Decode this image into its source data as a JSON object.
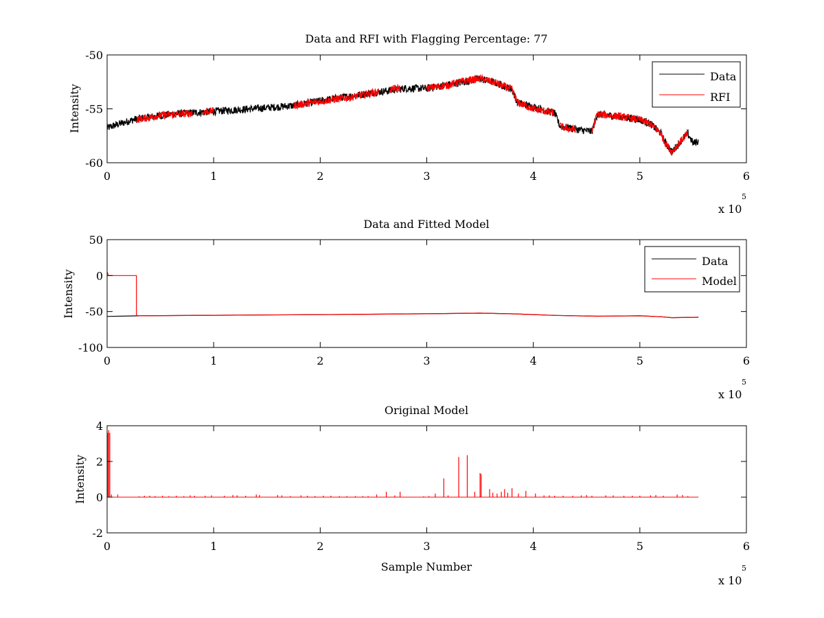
{
  "chart_data": [
    {
      "type": "line",
      "title": "Data and RFI with Flagging Percentage: 77",
      "xlabel": "",
      "ylabel": "Intensity",
      "xlim": [
        0,
        600000
      ],
      "ylim": [
        -60,
        -50
      ],
      "xticks": [
        0,
        100000,
        200000,
        300000,
        400000,
        500000,
        600000
      ],
      "xtick_labels": [
        "0",
        "1",
        "2",
        "3",
        "4",
        "5",
        "6"
      ],
      "yticks": [
        -60,
        -55,
        -50
      ],
      "ytick_labels": [
        "-60",
        "-55",
        "-50"
      ],
      "x_multiplier": {
        "base": "x 10",
        "exponent": "5"
      },
      "legend": {
        "placement": "top-right",
        "entries": [
          {
            "label": "Data",
            "color": "#000000"
          },
          {
            "label": "RFI",
            "color": "#ff0000"
          }
        ]
      },
      "series": [
        {
          "name": "Data",
          "color": "#000000",
          "x": [
            0,
            5000,
            15000,
            25000,
            30000,
            60000,
            90000,
            120000,
            150000,
            175000,
            210000,
            250000,
            280000,
            300000,
            330000,
            350000,
            365000,
            380000,
            385000,
            420000,
            425000,
            440000,
            455000,
            460000,
            480000,
            500000,
            510000,
            520000,
            523000,
            530000,
            540000,
            545000,
            550000,
            555000
          ],
          "y": [
            -56.8,
            -56.6,
            -56.3,
            -56.0,
            -55.9,
            -55.5,
            -55.3,
            -55.1,
            -54.9,
            -54.7,
            -54.1,
            -53.5,
            -53.1,
            -53.1,
            -52.6,
            -52.2,
            -52.6,
            -53.2,
            -54.4,
            -55.4,
            -56.6,
            -56.9,
            -57.1,
            -55.5,
            -55.7,
            -56.0,
            -56.4,
            -57.3,
            -58.0,
            -59.0,
            -57.8,
            -57.3,
            -58.2,
            -58.0
          ],
          "band": 0.35
        },
        {
          "name": "RFI",
          "color": "#ff0000",
          "segments": [
            {
              "x": [
                28000,
                50000,
                80000
              ],
              "y": [
                -56.0,
                -55.6,
                -55.4
              ]
            },
            {
              "x": [
                90000,
                100000
              ],
              "y": [
                -55.3,
                -55.2
              ]
            },
            {
              "x": [
                175000,
                200000,
                230000,
                255000
              ],
              "y": [
                -54.7,
                -54.3,
                -53.9,
                -53.4
              ]
            },
            {
              "x": [
                265000,
                275000
              ],
              "y": [
                -53.2,
                -53.1
              ]
            },
            {
              "x": [
                300000,
                320000,
                335000,
                350000,
                365000,
                380000,
                385000,
                400000,
                420000
              ],
              "y": [
                -53.1,
                -52.8,
                -52.4,
                -52.2,
                -52.6,
                -53.2,
                -54.4,
                -55.0,
                -55.4
              ]
            },
            {
              "x": [
                425000,
                430000,
                440000
              ],
              "y": [
                -56.6,
                -56.8,
                -56.9
              ]
            },
            {
              "x": [
                455000,
                460000,
                470000,
                480000,
                500000,
                510000,
                520000,
                523000,
                530000,
                540000,
                545000
              ],
              "y": [
                -57.1,
                -55.5,
                -55.6,
                -55.7,
                -56.0,
                -56.4,
                -57.3,
                -58.0,
                -59.0,
                -57.8,
                -57.3
              ]
            }
          ],
          "band": 0.35
        }
      ]
    },
    {
      "type": "line",
      "title": "Data and Fitted Model",
      "xlabel": "",
      "ylabel": "Intensity",
      "xlim": [
        0,
        600000
      ],
      "ylim": [
        -100,
        50
      ],
      "xticks": [
        0,
        100000,
        200000,
        300000,
        400000,
        500000,
        600000
      ],
      "xtick_labels": [
        "0",
        "1",
        "2",
        "3",
        "4",
        "5",
        "6"
      ],
      "yticks": [
        -100,
        -50,
        0,
        50
      ],
      "ytick_labels": [
        "-100",
        "-50",
        "0",
        "50"
      ],
      "x_multiplier": {
        "base": "x 10",
        "exponent": "5"
      },
      "legend": {
        "placement": "top-right",
        "entries": [
          {
            "label": "Data",
            "color": "#000000"
          },
          {
            "label": "Model",
            "color": "#ff0000"
          }
        ]
      },
      "series": [
        {
          "name": "Data",
          "color": "#000000",
          "x": [
            0,
            30000,
            100000,
            200000,
            300000,
            350000,
            380000,
            420000,
            460000,
            500000,
            520000,
            530000,
            555000
          ],
          "y": [
            -56.8,
            -56.0,
            -55.2,
            -54.3,
            -53.1,
            -52.2,
            -53.2,
            -55.4,
            -56.5,
            -56.0,
            -57.3,
            -58.5,
            -58.0
          ]
        },
        {
          "name": "Model",
          "color": "#ff0000",
          "x": [
            0,
            1200,
            2500,
            27500,
            27500,
            30000,
            100000,
            200000,
            300000,
            350000,
            380000,
            420000,
            460000,
            500000,
            520000,
            530000,
            555000
          ],
          "y": [
            5,
            0,
            0,
            0,
            -55.5,
            -56.0,
            -55.2,
            -54.3,
            -53.1,
            -52.2,
            -53.2,
            -55.4,
            -56.5,
            -56.0,
            -57.3,
            -58.5,
            -58.0
          ]
        }
      ]
    },
    {
      "type": "line",
      "title": "Original Model",
      "xlabel": "Sample Number",
      "ylabel": "Intensity",
      "xlim": [
        0,
        600000
      ],
      "ylim": [
        -2,
        4
      ],
      "xticks": [
        0,
        100000,
        200000,
        300000,
        400000,
        500000,
        600000
      ],
      "xtick_labels": [
        "0",
        "1",
        "2",
        "3",
        "4",
        "5",
        "6"
      ],
      "yticks": [
        -2,
        0,
        2,
        4
      ],
      "ytick_labels": [
        "-2",
        "0",
        "2",
        "4"
      ],
      "x_multiplier": {
        "base": "x 10",
        "exponent": "5"
      },
      "series": [
        {
          "name": "",
          "color": "#ff0000",
          "baseline": 0,
          "x_end": 555000,
          "spikes": [
            {
              "x": 500,
              "y": 3.6
            },
            {
              "x": 1500,
              "y": 3.75
            },
            {
              "x": 2500,
              "y": 3.6
            },
            {
              "x": 4000,
              "y": 0.15
            },
            {
              "x": 10000,
              "y": 0.15
            },
            {
              "x": 30000,
              "y": 0.05
            },
            {
              "x": 35000,
              "y": 0.08
            },
            {
              "x": 40000,
              "y": 0.08
            },
            {
              "x": 45000,
              "y": 0.06
            },
            {
              "x": 52000,
              "y": 0.08
            },
            {
              "x": 58000,
              "y": 0.06
            },
            {
              "x": 65000,
              "y": 0.08
            },
            {
              "x": 72000,
              "y": 0.06
            },
            {
              "x": 78000,
              "y": 0.1
            },
            {
              "x": 82000,
              "y": 0.08
            },
            {
              "x": 92000,
              "y": 0.08
            },
            {
              "x": 98000,
              "y": 0.1
            },
            {
              "x": 110000,
              "y": 0.08
            },
            {
              "x": 118000,
              "y": 0.12
            },
            {
              "x": 122000,
              "y": 0.1
            },
            {
              "x": 130000,
              "y": 0.08
            },
            {
              "x": 140000,
              "y": 0.15
            },
            {
              "x": 143000,
              "y": 0.12
            },
            {
              "x": 160000,
              "y": 0.12
            },
            {
              "x": 164000,
              "y": 0.1
            },
            {
              "x": 172000,
              "y": 0.06
            },
            {
              "x": 182000,
              "y": 0.1
            },
            {
              "x": 188000,
              "y": 0.08
            },
            {
              "x": 195000,
              "y": 0.06
            },
            {
              "x": 203000,
              "y": 0.08
            },
            {
              "x": 210000,
              "y": 0.08
            },
            {
              "x": 218000,
              "y": 0.06
            },
            {
              "x": 225000,
              "y": 0.06
            },
            {
              "x": 233000,
              "y": 0.06
            },
            {
              "x": 240000,
              "y": 0.06
            },
            {
              "x": 245000,
              "y": 0.06
            },
            {
              "x": 253000,
              "y": 0.15
            },
            {
              "x": 262000,
              "y": 0.3
            },
            {
              "x": 270000,
              "y": 0.1
            },
            {
              "x": 275000,
              "y": 0.3
            },
            {
              "x": 297000,
              "y": 0.05
            },
            {
              "x": 302000,
              "y": 0.06
            },
            {
              "x": 308000,
              "y": 0.2
            },
            {
              "x": 316000,
              "y": 1.05
            },
            {
              "x": 320000,
              "y": 0.1
            },
            {
              "x": 330000,
              "y": 2.25
            },
            {
              "x": 338000,
              "y": 2.35
            },
            {
              "x": 345000,
              "y": 0.3
            },
            {
              "x": 350000,
              "y": 1.35
            },
            {
              "x": 351000,
              "y": 1.3
            },
            {
              "x": 359000,
              "y": 0.45
            },
            {
              "x": 362000,
              "y": 0.25
            },
            {
              "x": 366000,
              "y": 0.2
            },
            {
              "x": 370000,
              "y": 0.3
            },
            {
              "x": 373000,
              "y": 0.45
            },
            {
              "x": 376000,
              "y": 0.25
            },
            {
              "x": 380000,
              "y": 0.5
            },
            {
              "x": 386000,
              "y": 0.2
            },
            {
              "x": 393000,
              "y": 0.35
            },
            {
              "x": 402000,
              "y": 0.2
            },
            {
              "x": 410000,
              "y": 0.1
            },
            {
              "x": 415000,
              "y": 0.1
            },
            {
              "x": 420000,
              "y": 0.08
            },
            {
              "x": 428000,
              "y": 0.08
            },
            {
              "x": 437000,
              "y": 0.08
            },
            {
              "x": 445000,
              "y": 0.1
            },
            {
              "x": 450000,
              "y": 0.12
            },
            {
              "x": 455000,
              "y": 0.08
            },
            {
              "x": 468000,
              "y": 0.1
            },
            {
              "x": 475000,
              "y": 0.1
            },
            {
              "x": 485000,
              "y": 0.08
            },
            {
              "x": 493000,
              "y": 0.08
            },
            {
              "x": 500000,
              "y": 0.08
            },
            {
              "x": 510000,
              "y": 0.1
            },
            {
              "x": 515000,
              "y": 0.12
            },
            {
              "x": 522000,
              "y": 0.08
            },
            {
              "x": 535000,
              "y": 0.15
            },
            {
              "x": 540000,
              "y": 0.12
            },
            {
              "x": 545000,
              "y": 0.06
            }
          ]
        }
      ]
    }
  ]
}
